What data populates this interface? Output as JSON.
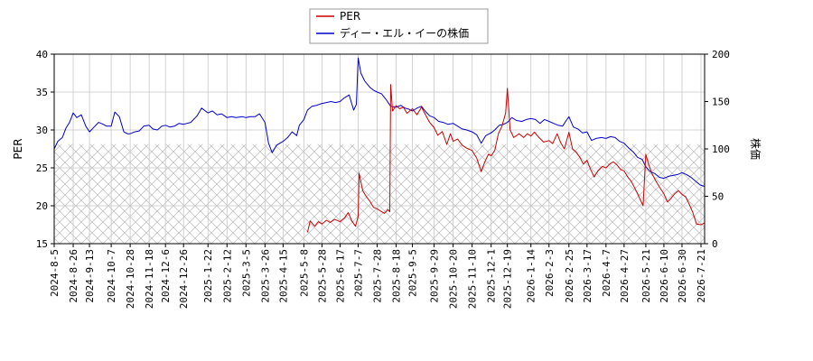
{
  "chart_data": {
    "type": "line",
    "title": "",
    "legend": {
      "placement": "top-center",
      "entries": [
        {
          "name": "PER",
          "color": "#cc0000"
        },
        {
          "name": "ディー・エル・イーの株価",
          "color": "#0000cc"
        }
      ]
    },
    "grid": true,
    "xlabel": "",
    "ylabel_left": "PER",
    "ylabel_right": "株価",
    "ylim_left": [
      15,
      40
    ],
    "ylim_right": [
      0,
      200
    ],
    "yticks_left": [
      "15",
      "20",
      "25",
      "30",
      "35",
      "40"
    ],
    "yticks_right": [
      "0",
      "50",
      "100",
      "150",
      "200"
    ],
    "hatched_band_right_max": 105,
    "x_ticks": [
      "2024-8-5",
      "2024-8-26",
      "2024-9-13",
      "2024-10-7",
      "2024-10-28",
      "2024-11-18",
      "2024-12-6",
      "2024-12-26",
      "2025-1-22",
      "2025-2-12",
      "2025-3-5",
      "2025-3-26",
      "2025-4-15",
      "2025-5-8",
      "2025-5-28",
      "2025-6-17",
      "2025-7-7",
      "2025-7-28",
      "2025-8-18",
      "2025-9-5",
      "2025-9-29",
      "2025-10-20",
      "2025-11-10",
      "2025-12-1",
      "2025-12-19",
      "2026-1-14",
      "2026-2-3",
      "2026-2-25",
      "2026-3-17",
      "2026-4-7",
      "2026-4-27",
      "2026-5-21",
      "2026-6-10",
      "2026-6-30",
      "2026-7-21"
    ],
    "series": [
      {
        "name": "PER",
        "axis": "left",
        "color": "#cc0000",
        "points": [
          [
            "2025-5-12",
            16.5
          ],
          [
            "2025-5-15",
            18.0
          ],
          [
            "2025-5-20",
            17.3
          ],
          [
            "2025-5-24",
            17.9
          ],
          [
            "2025-5-28",
            17.6
          ],
          [
            "2025-6-2",
            18.1
          ],
          [
            "2025-6-6",
            17.8
          ],
          [
            "2025-6-11",
            18.2
          ],
          [
            "2025-6-17",
            17.9
          ],
          [
            "2025-6-22",
            18.4
          ],
          [
            "2025-6-26",
            19.1
          ],
          [
            "2025-6-30",
            18.0
          ],
          [
            "2025-7-4",
            17.3
          ],
          [
            "2025-7-7",
            18.6
          ],
          [
            "2025-7-8",
            24.3
          ],
          [
            "2025-7-12",
            22.0
          ],
          [
            "2025-7-16",
            21.2
          ],
          [
            "2025-7-20",
            20.6
          ],
          [
            "2025-7-24",
            19.8
          ],
          [
            "2025-7-28",
            19.6
          ],
          [
            "2025-8-1",
            19.3
          ],
          [
            "2025-8-5",
            19.0
          ],
          [
            "2025-8-9",
            19.5
          ],
          [
            "2025-8-11",
            19.2
          ],
          [
            "2025-8-12",
            36.0
          ],
          [
            "2025-8-14",
            32.5
          ],
          [
            "2025-8-18",
            33.2
          ],
          [
            "2025-8-22",
            32.8
          ],
          [
            "2025-8-26",
            33.0
          ],
          [
            "2025-8-30",
            32.2
          ],
          [
            "2025-9-5",
            32.8
          ],
          [
            "2025-9-10",
            32.0
          ],
          [
            "2025-9-15",
            33.0
          ],
          [
            "2025-9-19",
            32.1
          ],
          [
            "2025-9-24",
            31.0
          ],
          [
            "2025-9-29",
            30.3
          ],
          [
            "2025-10-3",
            29.3
          ],
          [
            "2025-10-8",
            29.8
          ],
          [
            "2025-10-13",
            28.1
          ],
          [
            "2025-10-17",
            29.5
          ],
          [
            "2025-10-20",
            28.5
          ],
          [
            "2025-10-25",
            28.8
          ],
          [
            "2025-10-30",
            28.0
          ],
          [
            "2025-11-4",
            27.6
          ],
          [
            "2025-11-10",
            27.3
          ],
          [
            "2025-11-15",
            26.3
          ],
          [
            "2025-11-20",
            24.5
          ],
          [
            "2025-11-24",
            25.8
          ],
          [
            "2025-11-28",
            26.8
          ],
          [
            "2025-12-1",
            26.6
          ],
          [
            "2025-12-5",
            27.3
          ],
          [
            "2025-12-9",
            29.5
          ],
          [
            "2025-12-13",
            30.5
          ],
          [
            "2025-12-17",
            32.2
          ],
          [
            "2025-12-19",
            35.5
          ],
          [
            "2025-12-22",
            30.0
          ],
          [
            "2025-12-26",
            29.0
          ],
          [
            "2026-1-1",
            29.5
          ],
          [
            "2026-1-6",
            29.0
          ],
          [
            "2026-1-10",
            29.5
          ],
          [
            "2026-1-14",
            29.2
          ],
          [
            "2026-1-18",
            29.7
          ],
          [
            "2026-1-23",
            29.0
          ],
          [
            "2026-1-28",
            28.4
          ],
          [
            "2026-2-3",
            28.6
          ],
          [
            "2026-2-7",
            28.2
          ],
          [
            "2026-2-12",
            29.5
          ],
          [
            "2026-2-16",
            28.3
          ],
          [
            "2026-2-20",
            27.5
          ],
          [
            "2026-2-25",
            29.7
          ],
          [
            "2026-3-1",
            27.5
          ],
          [
            "2026-3-5",
            27.1
          ],
          [
            "2026-3-9",
            26.4
          ],
          [
            "2026-3-13",
            25.5
          ],
          [
            "2026-3-17",
            26.0
          ],
          [
            "2026-3-21",
            24.8
          ],
          [
            "2026-3-25",
            23.8
          ],
          [
            "2026-3-29",
            24.6
          ],
          [
            "2026-4-3",
            25.2
          ],
          [
            "2026-4-7",
            25.0
          ],
          [
            "2026-4-11",
            25.5
          ],
          [
            "2026-4-15",
            25.8
          ],
          [
            "2026-4-19",
            25.4
          ],
          [
            "2026-4-23",
            24.8
          ],
          [
            "2026-4-27",
            24.6
          ],
          [
            "2026-5-1",
            23.8
          ],
          [
            "2026-5-5",
            23.2
          ],
          [
            "2026-5-9",
            22.3
          ],
          [
            "2026-5-13",
            21.3
          ],
          [
            "2026-5-18",
            20.0
          ],
          [
            "2026-5-21",
            26.8
          ],
          [
            "2026-5-24",
            25.5
          ],
          [
            "2026-5-28",
            24.2
          ],
          [
            "2026-6-1",
            23.3
          ],
          [
            "2026-6-5",
            22.5
          ],
          [
            "2026-6-10",
            21.6
          ],
          [
            "2026-6-14",
            20.5
          ],
          [
            "2026-6-18",
            21.0
          ],
          [
            "2026-6-22",
            21.6
          ],
          [
            "2026-6-26",
            22.0
          ],
          [
            "2026-6-30",
            21.5
          ],
          [
            "2026-7-4",
            21.2
          ],
          [
            "2026-7-8",
            20.2
          ],
          [
            "2026-7-12",
            19.1
          ],
          [
            "2026-7-16",
            17.6
          ],
          [
            "2026-7-21",
            17.5
          ],
          [
            "2026-7-26",
            17.8
          ]
        ]
      },
      {
        "name": "ディー・エル・イーの株価",
        "axis": "right",
        "color": "#0000cc",
        "points": [
          [
            "2024-8-5",
            100
          ],
          [
            "2024-8-9",
            108
          ],
          [
            "2024-8-14",
            112
          ],
          [
            "2024-8-18",
            122
          ],
          [
            "2024-8-22",
            128
          ],
          [
            "2024-8-26",
            138
          ],
          [
            "2024-8-30",
            133
          ],
          [
            "2024-9-4",
            136
          ],
          [
            "2024-9-9",
            124
          ],
          [
            "2024-9-13",
            118
          ],
          [
            "2024-9-18",
            123
          ],
          [
            "2024-9-23",
            128
          ],
          [
            "2024-9-28",
            126
          ],
          [
            "2024-10-2",
            124
          ],
          [
            "2024-10-7",
            124
          ],
          [
            "2024-10-11",
            139
          ],
          [
            "2024-10-16",
            134
          ],
          [
            "2024-10-21",
            118
          ],
          [
            "2024-10-25",
            116
          ],
          [
            "2024-10-28",
            116
          ],
          [
            "2024-11-2",
            118
          ],
          [
            "2024-11-7",
            119
          ],
          [
            "2024-11-12",
            124
          ],
          [
            "2024-11-18",
            125
          ],
          [
            "2024-11-22",
            121
          ],
          [
            "2024-11-27",
            120
          ],
          [
            "2024-12-2",
            124
          ],
          [
            "2024-12-6",
            125
          ],
          [
            "2024-12-11",
            123
          ],
          [
            "2024-12-16",
            124
          ],
          [
            "2024-12-21",
            127
          ],
          [
            "2024-12-26",
            126
          ],
          [
            "2025-1-3",
            128
          ],
          [
            "2025-1-10",
            135
          ],
          [
            "2025-1-15",
            143
          ],
          [
            "2025-1-22",
            138
          ],
          [
            "2025-1-27",
            140
          ],
          [
            "2025-2-1",
            136
          ],
          [
            "2025-2-6",
            137
          ],
          [
            "2025-2-12",
            133
          ],
          [
            "2025-2-17",
            134
          ],
          [
            "2025-2-22",
            133
          ],
          [
            "2025-3-1",
            134
          ],
          [
            "2025-3-5",
            133
          ],
          [
            "2025-3-10",
            134
          ],
          [
            "2025-3-15",
            134
          ],
          [
            "2025-3-20",
            137
          ],
          [
            "2025-3-26",
            128
          ],
          [
            "2025-3-30",
            106
          ],
          [
            "2025-4-3",
            96
          ],
          [
            "2025-4-8",
            104
          ],
          [
            "2025-4-15",
            108
          ],
          [
            "2025-4-20",
            112
          ],
          [
            "2025-4-25",
            118
          ],
          [
            "2025-4-30",
            114
          ],
          [
            "2025-5-3",
            125
          ],
          [
            "2025-5-8",
            131
          ],
          [
            "2025-5-12",
            141
          ],
          [
            "2025-5-17",
            145
          ],
          [
            "2025-5-22",
            146
          ],
          [
            "2025-5-28",
            148
          ],
          [
            "2025-6-2",
            149
          ],
          [
            "2025-6-7",
            150
          ],
          [
            "2025-6-12",
            149
          ],
          [
            "2025-6-17",
            150
          ],
          [
            "2025-6-22",
            154
          ],
          [
            "2025-6-27",
            157
          ],
          [
            "2025-7-2",
            141
          ],
          [
            "2025-7-5",
            147
          ],
          [
            "2025-7-7",
            196
          ],
          [
            "2025-7-10",
            180
          ],
          [
            "2025-7-14",
            172
          ],
          [
            "2025-7-20",
            165
          ],
          [
            "2025-7-24",
            162
          ],
          [
            "2025-7-28",
            160
          ],
          [
            "2025-8-2",
            158
          ],
          [
            "2025-8-7",
            152
          ],
          [
            "2025-8-12",
            145
          ],
          [
            "2025-8-18",
            144
          ],
          [
            "2025-8-23",
            146
          ],
          [
            "2025-8-28",
            143
          ],
          [
            "2025-9-1",
            142
          ],
          [
            "2025-9-5",
            140
          ],
          [
            "2025-9-10",
            143
          ],
          [
            "2025-9-15",
            145
          ],
          [
            "2025-9-19",
            140
          ],
          [
            "2025-9-24",
            135
          ],
          [
            "2025-9-29",
            133
          ],
          [
            "2025-10-4",
            129
          ],
          [
            "2025-10-9",
            128
          ],
          [
            "2025-10-14",
            126
          ],
          [
            "2025-10-20",
            127
          ],
          [
            "2025-10-25",
            124
          ],
          [
            "2025-10-30",
            121
          ],
          [
            "2025-11-4",
            120
          ],
          [
            "2025-11-10",
            118
          ],
          [
            "2025-11-15",
            115
          ],
          [
            "2025-11-20",
            106
          ],
          [
            "2025-11-25",
            114
          ],
          [
            "2025-12-1",
            117
          ],
          [
            "2025-12-5",
            120
          ],
          [
            "2025-12-10",
            125
          ],
          [
            "2025-12-15",
            126
          ],
          [
            "2025-12-19",
            128
          ],
          [
            "2025-12-24",
            133
          ],
          [
            "2025-12-29",
            130
          ],
          [
            "2026-1-4",
            129
          ],
          [
            "2026-1-9",
            131
          ],
          [
            "2026-1-14",
            132
          ],
          [
            "2026-1-19",
            131
          ],
          [
            "2026-1-24",
            127
          ],
          [
            "2026-1-29",
            131
          ],
          [
            "2026-2-3",
            129
          ],
          [
            "2026-2-8",
            127
          ],
          [
            "2026-2-13",
            125
          ],
          [
            "2026-2-18",
            124
          ],
          [
            "2026-2-22",
            130
          ],
          [
            "2026-2-25",
            134
          ],
          [
            "2026-3-2",
            123
          ],
          [
            "2026-3-7",
            121
          ],
          [
            "2026-3-12",
            117
          ],
          [
            "2026-3-17",
            118
          ],
          [
            "2026-3-22",
            109
          ],
          [
            "2026-3-27",
            111
          ],
          [
            "2026-4-2",
            112
          ],
          [
            "2026-4-7",
            111
          ],
          [
            "2026-4-12",
            113
          ],
          [
            "2026-4-17",
            112
          ],
          [
            "2026-4-22",
            108
          ],
          [
            "2026-4-27",
            106
          ],
          [
            "2026-5-2",
            101
          ],
          [
            "2026-5-7",
            97
          ],
          [
            "2026-5-12",
            91
          ],
          [
            "2026-5-17",
            89
          ],
          [
            "2026-5-21",
            81
          ],
          [
            "2026-5-26",
            76
          ],
          [
            "2026-5-31",
            74
          ],
          [
            "2026-6-5",
            70
          ],
          [
            "2026-6-10",
            69
          ],
          [
            "2026-6-15",
            71
          ],
          [
            "2026-6-20",
            72
          ],
          [
            "2026-6-25",
            73
          ],
          [
            "2026-6-30",
            75
          ],
          [
            "2026-7-5",
            73
          ],
          [
            "2026-7-10",
            70
          ],
          [
            "2026-7-15",
            66
          ],
          [
            "2026-7-20",
            62
          ],
          [
            "2026-7-26",
            60
          ]
        ]
      }
    ]
  }
}
